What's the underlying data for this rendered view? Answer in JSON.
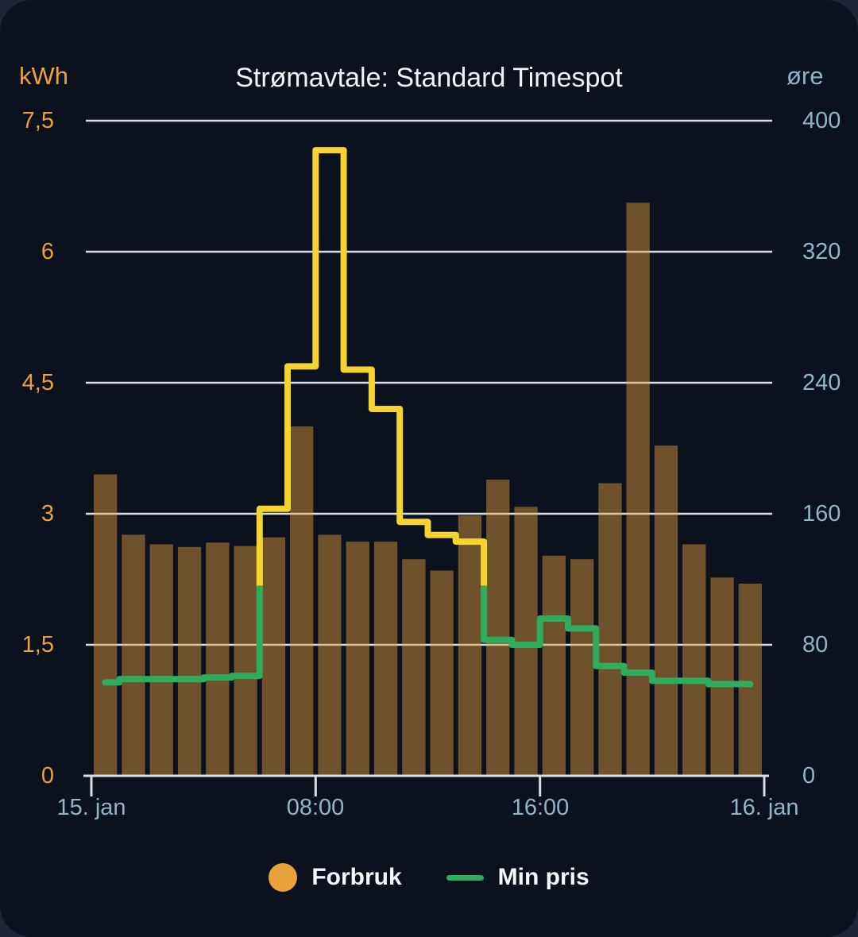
{
  "colors": {
    "background_outer": "#1E2536",
    "background_card": "#0B121E",
    "grid": "#D9DEE4",
    "title_text": "#F2F5F7",
    "left_axis_text": "#E9A13B",
    "right_axis_text": "#8FB5C6",
    "legend_text": "#F5F7F8"
  },
  "chart_data": {
    "type": "combo-bar-line",
    "title": "Strømavtale: Standard Timespot",
    "grid": true,
    "legend_position": "bottom",
    "x": {
      "unit": "hour of day, 15. jan 00:00 to 16. jan 00:00",
      "tick_labels": [
        {
          "label": "15. jan",
          "hour": 0
        },
        {
          "label": "08:00",
          "hour": 8
        },
        {
          "label": "16:00",
          "hour": 16
        },
        {
          "label": "16. jan",
          "hour": 24
        }
      ]
    },
    "y_left": {
      "unit": "kWh",
      "max": 7.5,
      "tick_values": [
        7.5,
        6,
        4.5,
        3,
        1.5,
        0
      ],
      "tick_labels": [
        "7,5",
        "6",
        "4,5",
        "3",
        "1,5",
        "0"
      ]
    },
    "y_right": {
      "unit": "øre",
      "max": 400,
      "tick_values": [
        400,
        320,
        240,
        160,
        80,
        0
      ],
      "tick_labels": [
        "400",
        "320",
        "240",
        "160",
        "80",
        "0"
      ]
    },
    "series": [
      {
        "name": "Forbruk",
        "type": "bar",
        "axis": "left",
        "unit": "kWh",
        "color": "#E9A13B",
        "opacity": 0.45,
        "values": [
          3.45,
          2.76,
          2.65,
          2.62,
          2.67,
          2.63,
          2.73,
          4.0,
          2.76,
          2.68,
          2.68,
          2.48,
          2.35,
          2.98,
          3.39,
          3.08,
          2.52,
          2.48,
          3.35,
          6.56,
          3.78,
          2.65,
          2.27,
          2.2
        ]
      },
      {
        "name": "Min pris",
        "type": "step-line",
        "axis": "right",
        "unit": "øre",
        "color_low": "#2EAD5C",
        "color_high": "#F5D430",
        "color_threshold": 116,
        "values": [
          57,
          59,
          59,
          59,
          60,
          61,
          163,
          250,
          382,
          248,
          224,
          155,
          147,
          143,
          83,
          80,
          96,
          90,
          67,
          63,
          58,
          58,
          56,
          56
        ]
      }
    ]
  }
}
